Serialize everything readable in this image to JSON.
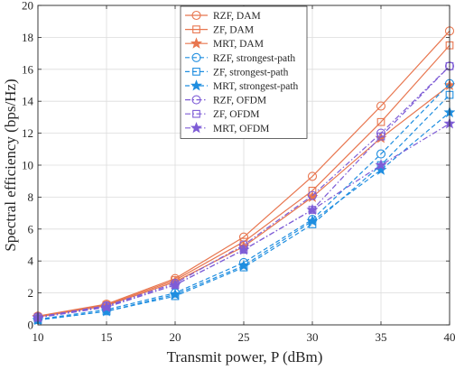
{
  "chart_data": {
    "type": "line",
    "title": "",
    "xlabel": "Transmit power, P (dBm)",
    "ylabel": "Spectral efficiency (bps/Hz)",
    "x": [
      10,
      15,
      20,
      25,
      30,
      35,
      40
    ],
    "xlim": [
      10,
      40
    ],
    "ylim": [
      0,
      20
    ],
    "xticks": [
      "10",
      "15",
      "20",
      "25",
      "30",
      "35",
      "40"
    ],
    "yticks": [
      "0",
      "2",
      "4",
      "6",
      "8",
      "10",
      "12",
      "14",
      "16",
      "18",
      "20"
    ],
    "grid": true,
    "legend_position": "top-left",
    "colors": {
      "dam": "#e8764f",
      "strongest": "#1f8ee0",
      "ofdm": "#7e5cd6",
      "axis": "#262626",
      "grid": "#dcdcdc"
    },
    "series": [
      {
        "name": "RZF, DAM",
        "values": [
          0.55,
          1.3,
          2.9,
          5.5,
          9.3,
          13.7,
          18.4
        ],
        "color": "#e8764f",
        "dash": "solid",
        "marker": "circle"
      },
      {
        "name": "ZF, DAM",
        "values": [
          0.5,
          1.25,
          2.8,
          5.2,
          8.4,
          12.7,
          17.5
        ],
        "color": "#e8764f",
        "dash": "solid",
        "marker": "square"
      },
      {
        "name": "MRT, DAM",
        "values": [
          0.5,
          1.2,
          2.7,
          4.9,
          8.0,
          11.7,
          15.0
        ],
        "color": "#e8764f",
        "dash": "solid",
        "marker": "star"
      },
      {
        "name": "RZF, strongest-path",
        "values": [
          0.35,
          0.95,
          2.0,
          3.9,
          6.6,
          10.7,
          15.1
        ],
        "color": "#1f8ee0",
        "dash": "dash",
        "marker": "circle"
      },
      {
        "name": "ZF, strongest-path",
        "values": [
          0.3,
          0.85,
          1.8,
          3.6,
          6.3,
          10.0,
          14.4
        ],
        "color": "#1f8ee0",
        "dash": "dash",
        "marker": "square"
      },
      {
        "name": "MRT, strongest-path",
        "values": [
          0.3,
          0.85,
          1.9,
          3.7,
          6.5,
          9.7,
          13.3
        ],
        "color": "#1f8ee0",
        "dash": "dash",
        "marker": "star"
      },
      {
        "name": "RZF, OFDM",
        "values": [
          0.5,
          1.2,
          2.6,
          5.0,
          8.1,
          12.0,
          16.2
        ],
        "color": "#7e5cd6",
        "dash": "dashdot",
        "marker": "circle"
      },
      {
        "name": "ZF, OFDM",
        "values": [
          0.45,
          1.15,
          2.5,
          4.7,
          7.2,
          11.8,
          16.2
        ],
        "color": "#7e5cd6",
        "dash": "dashdot",
        "marker": "square"
      },
      {
        "name": "MRT, OFDM",
        "values": [
          0.45,
          1.1,
          2.5,
          4.7,
          7.2,
          10.0,
          12.6
        ],
        "color": "#7e5cd6",
        "dash": "dashdot",
        "marker": "star"
      }
    ]
  }
}
